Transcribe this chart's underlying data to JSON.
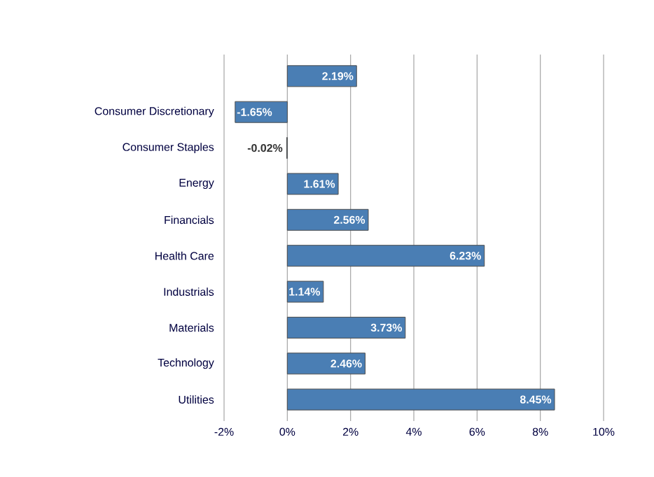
{
  "chart_data": {
    "type": "bar",
    "orientation": "horizontal",
    "categories": [
      null,
      "Consumer Discretionary",
      "Consumer Staples",
      "Energy",
      "Financials",
      "Health Care",
      "Industrials",
      "Materials",
      "Technology",
      "Utilities"
    ],
    "values": [
      2.19,
      -1.65,
      -0.02,
      1.61,
      2.56,
      6.23,
      1.14,
      3.73,
      2.46,
      8.45
    ],
    "value_labels": [
      "2.19%",
      "-1.65%",
      "-0.02%",
      "1.61%",
      "2.56%",
      "6.23%",
      "1.14%",
      "3.73%",
      "2.46%",
      "8.45%"
    ],
    "color": "#4a7eb4",
    "xlim": [
      -2,
      10
    ],
    "xticks": [
      {
        "value": -2,
        "label": "-2%"
      },
      {
        "value": 0,
        "label": "0%"
      },
      {
        "value": 2,
        "label": "2%"
      },
      {
        "value": 4,
        "label": "4%"
      },
      {
        "value": 6,
        "label": "6%"
      },
      {
        "value": 8,
        "label": "8%"
      },
      {
        "value": 10,
        "label": "10%"
      }
    ],
    "grid": "x"
  }
}
